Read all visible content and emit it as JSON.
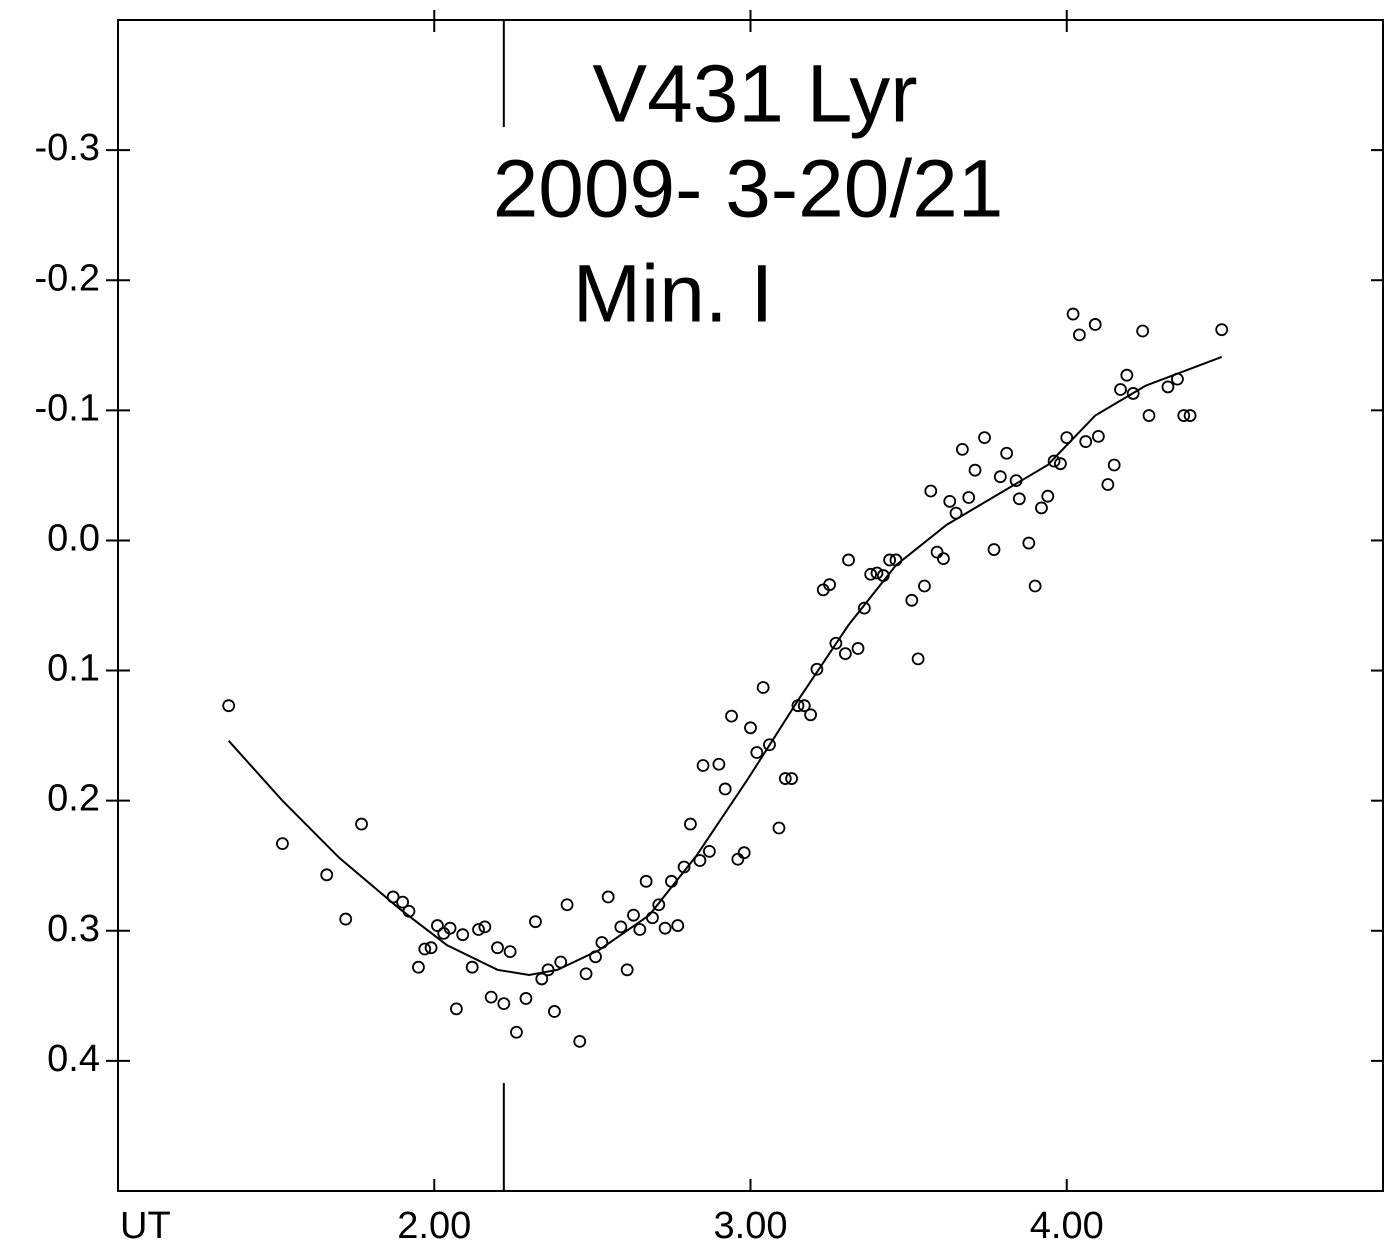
{
  "chart_data": {
    "type": "scatter",
    "title": "V431 Lyr",
    "subtitle": "2009- 3-20/21",
    "annotation": "Min. I",
    "x_label": "UT",
    "xlim": [
      1,
      5
    ],
    "ylim": [
      -0.4,
      0.5
    ],
    "y_inverted": true,
    "xticks": [
      {
        "value": 2,
        "label": "2.00"
      },
      {
        "value": 3,
        "label": "3.00"
      },
      {
        "value": 4,
        "label": "4.00"
      }
    ],
    "yticks": [
      -0.3,
      -0.2,
      -0.1,
      {
        "value": 0,
        "label": "0.0"
      },
      0.1,
      0.2,
      0.3,
      0.4
    ],
    "minimum_ut": 2.22,
    "color": "#000000",
    "series": [
      {
        "mode": "markers",
        "x": [
          1.35,
          1.52,
          1.66,
          1.72,
          1.77,
          1.87,
          1.9,
          1.92,
          1.95,
          1.97,
          1.99,
          2.01,
          2.03,
          2.05,
          2.07,
          2.09,
          2.12,
          2.14,
          2.16,
          2.18,
          2.2,
          2.22,
          2.24,
          2.26,
          2.29,
          2.32,
          2.34,
          2.36,
          2.38,
          2.4,
          2.42,
          2.46,
          2.48,
          2.51,
          2.53,
          2.55,
          2.59,
          2.61,
          2.63,
          2.65,
          2.67,
          2.69,
          2.71,
          2.73,
          2.75,
          2.77,
          2.79,
          2.81,
          2.84,
          2.85,
          2.87,
          2.9,
          2.92,
          2.94,
          2.96,
          2.98,
          3.0,
          3.02,
          3.04,
          3.06,
          3.09,
          3.11,
          3.13,
          3.15,
          3.17,
          3.19,
          3.21,
          3.23,
          3.25,
          3.27,
          3.3,
          3.31,
          3.34,
          3.36,
          3.38,
          3.4,
          3.42,
          3.44,
          3.46,
          3.51,
          3.53,
          3.55,
          3.57,
          3.59,
          3.61,
          3.63,
          3.65,
          3.67,
          3.69,
          3.71,
          3.74,
          3.77,
          3.79,
          3.81,
          3.84,
          3.85,
          3.88,
          3.9,
          3.92,
          3.94,
          3.96,
          3.98,
          4.0,
          4.02,
          4.04,
          4.06,
          4.09,
          4.1,
          4.13,
          4.15,
          4.17,
          4.19,
          4.21,
          4.24,
          4.26,
          4.32,
          4.35,
          4.37,
          4.39,
          4.49
        ],
        "values": [
          0.127,
          0.233,
          0.257,
          0.291,
          0.218,
          0.274,
          0.278,
          0.285,
          0.328,
          0.314,
          0.313,
          0.296,
          0.302,
          0.298,
          0.36,
          0.303,
          0.328,
          0.299,
          0.297,
          0.351,
          0.313,
          0.356,
          0.316,
          0.378,
          0.352,
          0.293,
          0.337,
          0.33,
          0.362,
          0.324,
          0.28,
          0.385,
          0.333,
          0.32,
          0.309,
          0.274,
          0.297,
          0.33,
          0.288,
          0.299,
          0.262,
          0.29,
          0.28,
          0.298,
          0.262,
          0.296,
          0.251,
          0.218,
          0.246,
          0.173,
          0.239,
          0.172,
          0.191,
          0.135,
          0.245,
          0.24,
          0.144,
          0.163,
          0.113,
          0.157,
          0.221,
          0.183,
          0.183,
          0.127,
          0.127,
          0.134,
          0.099,
          0.038,
          0.034,
          0.079,
          0.087,
          0.015,
          0.083,
          0.052,
          0.026,
          0.025,
          0.027,
          0.015,
          0.015,
          0.046,
          0.091,
          0.035,
          -0.038,
          0.009,
          0.014,
          -0.03,
          -0.021,
          -0.07,
          -0.033,
          -0.054,
          -0.079,
          0.007,
          -0.049,
          -0.067,
          -0.046,
          -0.032,
          0.002,
          0.035,
          -0.025,
          -0.034,
          -0.061,
          -0.059,
          -0.079,
          -0.174,
          -0.158,
          -0.076,
          -0.166,
          -0.08,
          -0.043,
          -0.058,
          -0.116,
          -0.127,
          -0.113,
          -0.161,
          -0.096,
          -0.118,
          -0.124,
          -0.096,
          -0.096,
          -0.162
        ]
      },
      {
        "mode": "line",
        "x": [
          1.35,
          1.52,
          1.7,
          1.89,
          2.04,
          2.2,
          2.3,
          2.39,
          2.52,
          2.68,
          2.83,
          2.99,
          3.15,
          3.31,
          3.46,
          3.62,
          3.78,
          3.94,
          4.09,
          4.25,
          4.49
        ],
        "values": [
          0.154,
          0.2,
          0.244,
          0.283,
          0.311,
          0.33,
          0.334,
          0.33,
          0.315,
          0.288,
          0.242,
          0.184,
          0.123,
          0.065,
          0.019,
          -0.012,
          -0.035,
          -0.058,
          -0.096,
          -0.119,
          -0.141
        ]
      }
    ]
  }
}
